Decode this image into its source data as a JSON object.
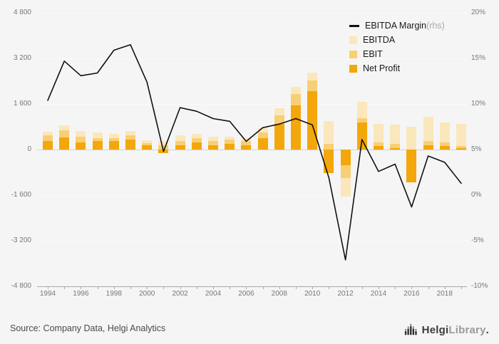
{
  "page": {
    "background": "#f5f5f5"
  },
  "legend": {
    "margin": {
      "label": "EBITDA Margin",
      "suffix": " (rhs)",
      "color": "#111111"
    },
    "ebitda": {
      "label": "EBITDA",
      "color": "#FBE7BC"
    },
    "ebit": {
      "label": "EBIT",
      "color": "#F8CF74"
    },
    "net_profit": {
      "label": "Net Profit",
      "color": "#F3A70A"
    }
  },
  "footer": {
    "source": "Source: Company Data, Helgi Analytics",
    "logo_text_1": "Helgi",
    "logo_text_2": "Library",
    "logo_dot": "."
  },
  "chart_data": {
    "type": "bar",
    "combo": "bar+line",
    "title": "",
    "xlabel": "",
    "ylabel": "",
    "grid": "horizontal-dotted",
    "legend_position": "top-right",
    "x": [
      1994,
      1995,
      1996,
      1997,
      1998,
      1999,
      2000,
      2001,
      2002,
      2003,
      2004,
      2005,
      2006,
      2007,
      2008,
      2009,
      2010,
      2011,
      2012,
      2013,
      2014,
      2015,
      2016,
      2017,
      2018,
      2019
    ],
    "x_ticks": [
      "1994",
      "1996",
      "1998",
      "2000",
      "2002",
      "2004",
      "2006",
      "2008",
      "2010",
      "2012",
      "2014",
      "2016",
      "2018"
    ],
    "left_axis": {
      "min": -4800,
      "max": 4800,
      "tick_step": 1600,
      "ticks": [
        "4 800",
        "3 200",
        "1 600",
        "0",
        "-1 600",
        "-3 200",
        "-4 800"
      ]
    },
    "right_axis": {
      "min": -10,
      "max": 20,
      "tick_step": 5,
      "ticks": [
        "20%",
        "15%",
        "10%",
        "5%",
        "0%",
        "-5%",
        "-10%"
      ]
    },
    "series": [
      {
        "name": "EBITDA",
        "type": "bar",
        "color": "#FBE7BC",
        "values": [
          620,
          850,
          640,
          590,
          560,
          650,
          330,
          300,
          500,
          560,
          460,
          450,
          400,
          760,
          1450,
          2200,
          2700,
          1000,
          -1650,
          1670,
          900,
          880,
          800,
          1150,
          950,
          900
        ]
      },
      {
        "name": "EBIT",
        "type": "bar",
        "color": "#F8CF74",
        "values": [
          500,
          670,
          460,
          410,
          400,
          500,
          230,
          160,
          310,
          400,
          300,
          340,
          290,
          600,
          1200,
          1950,
          2420,
          200,
          -1000,
          1100,
          250,
          200,
          -250,
          300,
          250,
          120
        ]
      },
      {
        "name": "Net Profit",
        "type": "bar",
        "color": "#F3A70A",
        "values": [
          310,
          420,
          260,
          300,
          290,
          350,
          140,
          -130,
          160,
          250,
          160,
          210,
          160,
          400,
          890,
          1550,
          2060,
          -820,
          -550,
          960,
          130,
          60,
          -1150,
          160,
          120,
          60
        ]
      },
      {
        "name": "EBITDA Margin",
        "type": "line",
        "axis": "rhs",
        "color": "#111111",
        "values": [
          10.4,
          14.7,
          13.1,
          13.4,
          15.9,
          16.5,
          12.4,
          4.8,
          9.6,
          9.2,
          8.4,
          8.1,
          5.9,
          7.4,
          7.8,
          8.4,
          7.7,
          1.9,
          -7.1,
          6.1,
          2.6,
          3.4,
          -1.3,
          4.3,
          3.6,
          1.3
        ]
      }
    ]
  }
}
